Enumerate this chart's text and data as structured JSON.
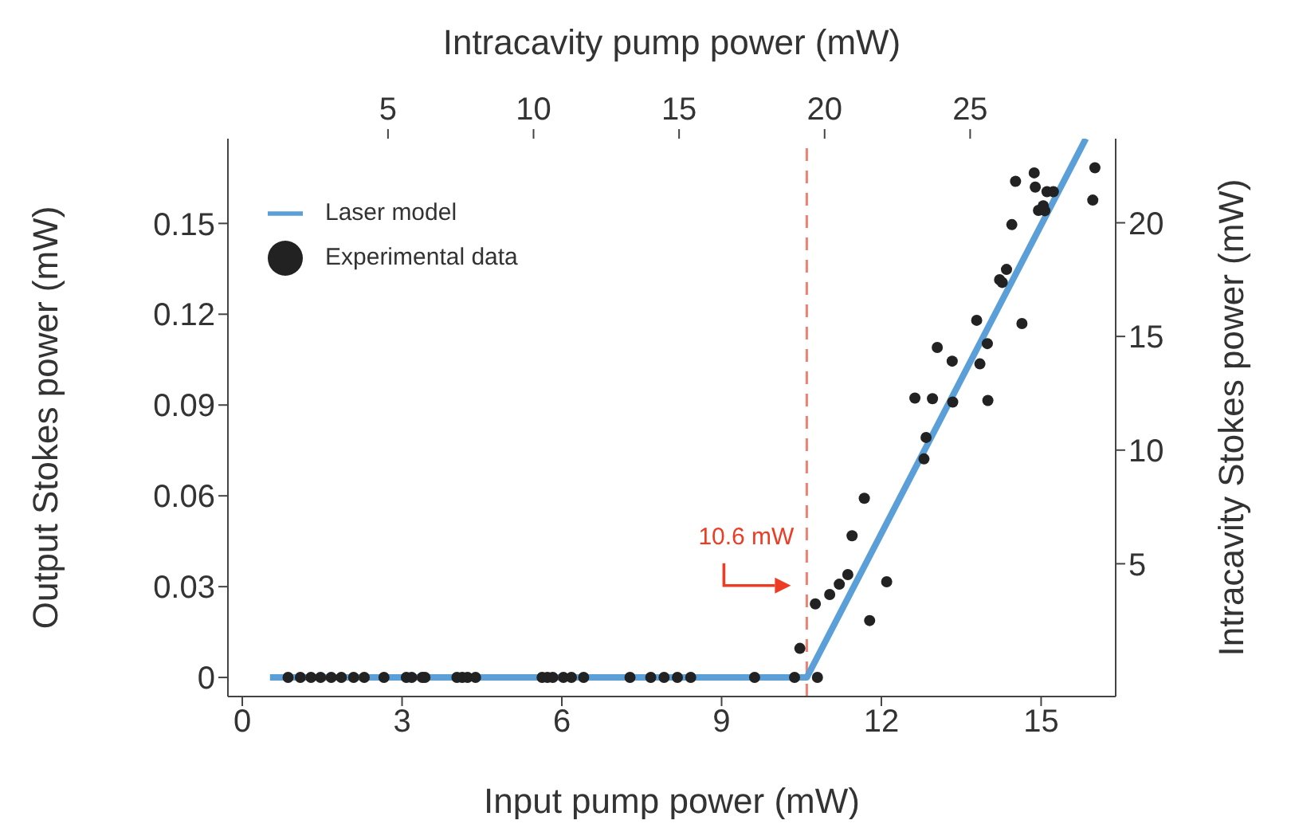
{
  "chart_data": {
    "type": "scatter",
    "xlabel": "Input pump power (mW)",
    "ylabel": "Output Stokes power (mW)",
    "x2label": "Intracavity pump power (mW)",
    "y2label": "Intracavity Stokes power (mW)",
    "xlim": [
      -0.27,
      16.4
    ],
    "xticks": [
      0,
      3,
      6,
      9,
      12,
      15
    ],
    "ylim": [
      -0.0063,
      0.178
    ],
    "yticks": [
      0,
      0.03,
      0.06,
      0.09,
      0.12,
      0.15
    ],
    "x2lim": [
      -0.5,
      30
    ],
    "x2ticks": [
      5,
      10,
      15,
      20,
      25
    ],
    "y2lim": [
      -0.84,
      23.7
    ],
    "y2ticks": [
      5,
      10,
      15,
      20
    ],
    "legend": "top left",
    "ref_lines": [
      {
        "axis": "x",
        "value": 10.6,
        "color": "#f08070",
        "line_style": "dashed"
      }
    ],
    "annotations": [
      {
        "text": "10.6 mW",
        "x": 10.6,
        "y": 0.023
      }
    ],
    "series": [
      {
        "name": "Laser model",
        "type": "line",
        "color": "#5a9fd8",
        "marker": "none",
        "line_style": "solid",
        "x": [
          0.52,
          10.6,
          15.84
        ],
        "values": [
          0,
          0,
          0.178
        ]
      },
      {
        "name": "Experimental data",
        "color": "#222222",
        "marker": "circle",
        "x": [
          0.86,
          1.09,
          1.29,
          1.47,
          1.67,
          1.86,
          2.09,
          2.29,
          2.66,
          3.08,
          3.18,
          3.38,
          3.43,
          4.03,
          4.13,
          4.23,
          4.38,
          5.63,
          5.73,
          5.83,
          6.03,
          6.18,
          6.41,
          7.28,
          7.67,
          7.92,
          8.17,
          8.42,
          9.62,
          10.37,
          10.8,
          10.47,
          10.76,
          11.03,
          11.21,
          11.37,
          11.45,
          11.68,
          11.78,
          12.1,
          12.63,
          12.8,
          12.84,
          12.96,
          13.05,
          13.33,
          13.34,
          13.79,
          13.85,
          13.99,
          14.0,
          14.22,
          14.27,
          14.35,
          14.45,
          14.52,
          14.64,
          14.87,
          14.89,
          14.95,
          15.04,
          15.07,
          15.11,
          15.23,
          15.97,
          16.01
        ],
        "values": [
          0,
          0,
          0,
          0,
          0,
          0,
          0,
          0,
          0,
          0,
          0,
          0,
          0,
          0,
          0,
          0,
          0,
          0,
          0,
          0,
          0,
          0,
          0,
          0,
          0,
          0,
          0,
          0,
          0,
          0,
          0,
          0.0096,
          0.0243,
          0.0274,
          0.0308,
          0.034,
          0.0468,
          0.0592,
          0.0188,
          0.0316,
          0.0923,
          0.0722,
          0.0793,
          0.0921,
          0.109,
          0.1045,
          0.091,
          0.118,
          0.1036,
          0.1103,
          0.0915,
          0.1314,
          0.1305,
          0.1348,
          0.1496,
          0.1639,
          0.1169,
          0.1667,
          0.162,
          0.1543,
          0.1558,
          0.1542,
          0.1605,
          0.1605,
          0.1577,
          0.1684
        ]
      }
    ]
  }
}
